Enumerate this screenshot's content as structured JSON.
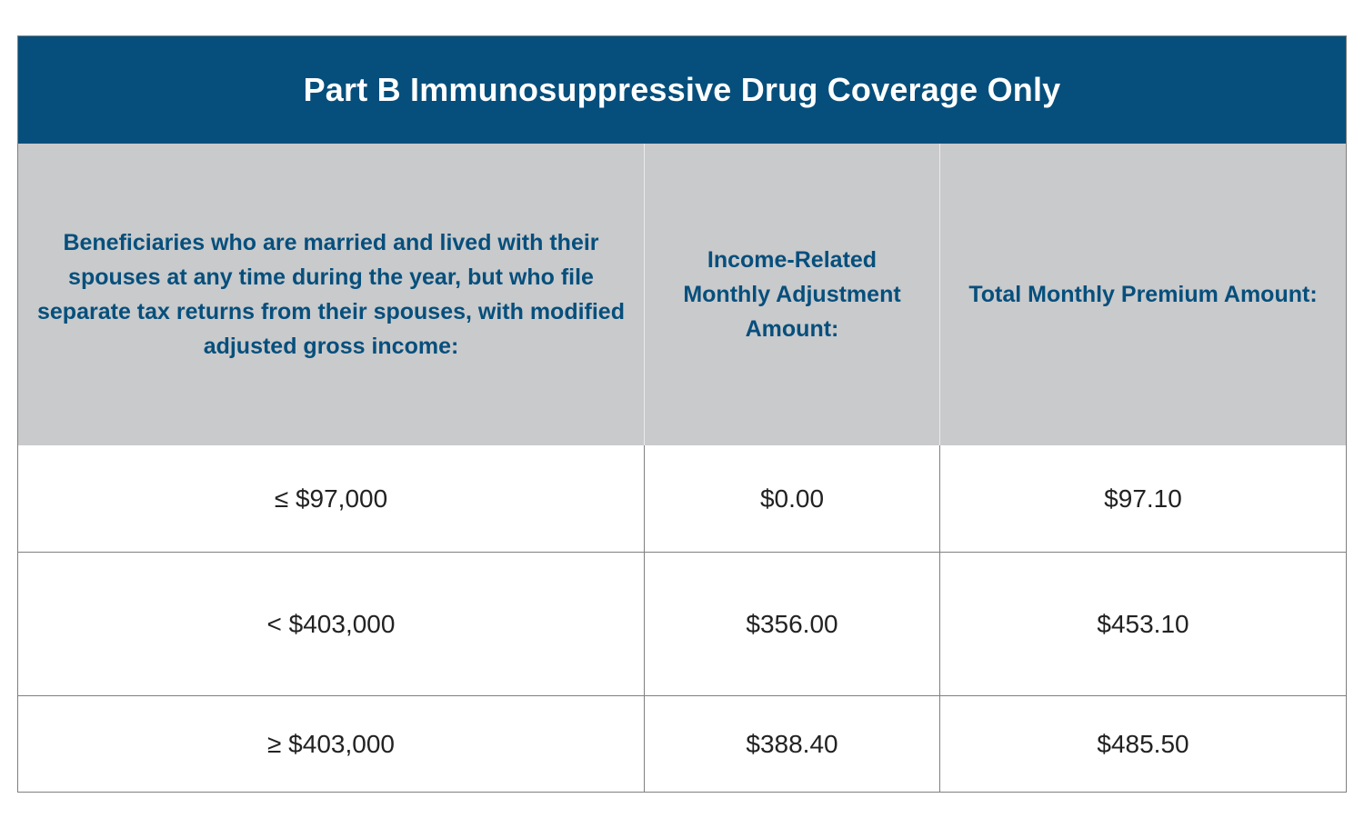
{
  "table": {
    "title": "Part B Immunosuppressive Drug Coverage Only",
    "headers": [
      "Beneficiaries who are married and lived with their spouses at any time during the year, but who file separate tax returns from their spouses, with modified adjusted gross income:",
      "Income-Related Monthly Adjustment Amount:",
      "Total Monthly Premium Amount:"
    ],
    "rows": [
      {
        "income": "≤ $97,000",
        "adjustment": "$0.00",
        "premium": "$97.10"
      },
      {
        "income": "< $403,000",
        "adjustment": "$356.00",
        "premium": "$453.10"
      },
      {
        "income": "≥ $403,000",
        "adjustment": "$388.40",
        "premium": "$485.50"
      }
    ]
  }
}
